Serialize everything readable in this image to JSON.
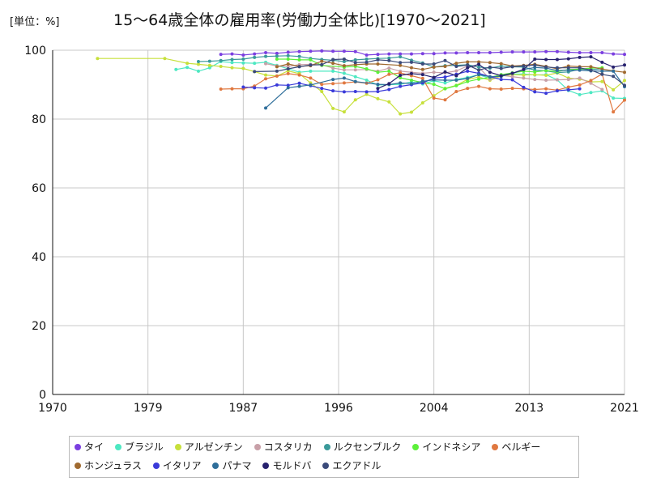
{
  "header": {
    "unit_label": "[単位：%]",
    "title": "15〜64歳全体の雇用率(労働力全体比)[1970〜2021]"
  },
  "chart_data": {
    "type": "line",
    "xlim": [
      1970,
      2021
    ],
    "ylim": [
      0,
      100
    ],
    "x_ticks": [
      "1970",
      "1979",
      "1987",
      "1996",
      "2004",
      "2013",
      "2021"
    ],
    "x_tick_values": [
      1970,
      1978.5,
      1987,
      1995.5,
      2004,
      2012.5,
      2021
    ],
    "y_ticks": [
      "0",
      "20",
      "40",
      "60",
      "80",
      "100"
    ],
    "y_tick_values": [
      0,
      20,
      40,
      60,
      80,
      100
    ],
    "grid": true,
    "legend_position": "bottom",
    "series": [
      {
        "name": "タイ",
        "color": "#7b3fe0",
        "x": [
          1985,
          1986,
          1987,
          1988,
          1989,
          1990,
          1991,
          1992,
          1993,
          1994,
          1995,
          1996,
          1997,
          1998,
          1999,
          2000,
          2001,
          2002,
          2003,
          2004,
          2005,
          2006,
          2007,
          2008,
          2009,
          2010,
          2011,
          2012,
          2013,
          2014,
          2015,
          2016,
          2017,
          2018,
          2019,
          2020,
          2021
        ],
        "y": [
          98.8,
          98.9,
          98.6,
          98.9,
          99.3,
          99.1,
          99.4,
          99.6,
          99.7,
          99.8,
          99.7,
          99.7,
          99.6,
          98.6,
          98.8,
          98.9,
          98.9,
          98.9,
          99.0,
          99.0,
          99.2,
          99.2,
          99.3,
          99.3,
          99.3,
          99.4,
          99.5,
          99.5,
          99.5,
          99.6,
          99.6,
          99.4,
          99.3,
          99.3,
          99.3,
          98.9,
          98.8
        ]
      },
      {
        "name": "ブラジル",
        "color": "#4de8c2",
        "x": [
          1981,
          1982,
          1983,
          1984,
          1985,
          1986,
          1987,
          1988,
          1989,
          1990,
          1992,
          1993,
          1995,
          1996,
          1997,
          1998,
          1999,
          2001,
          2002,
          2003,
          2004,
          2005,
          2006,
          2007,
          2008,
          2009,
          2011,
          2012,
          2013,
          2014,
          2015,
          2016,
          2017,
          2018,
          2019,
          2020,
          2021
        ],
        "y": [
          94.4,
          95.0,
          93.9,
          94.9,
          96.7,
          96.4,
          96.3,
          96.2,
          96.5,
          95.6,
          93.6,
          93.9,
          93.9,
          93.3,
          92.3,
          91.3,
          89.9,
          90.1,
          90.8,
          90.2,
          91.1,
          90.5,
          91.5,
          92.1,
          92.9,
          91.8,
          93.1,
          93.1,
          92.8,
          92.9,
          91.4,
          88.3,
          87.1,
          87.7,
          88.2,
          86.1,
          86.0
        ]
      },
      {
        "name": "アルゼンチン",
        "color": "#c7e03b",
        "x": [
          1974,
          1980,
          1982,
          1983,
          1984,
          1985,
          1986,
          1987,
          1988,
          1989,
          1990,
          1991,
          1992,
          1993,
          1994,
          1995,
          1996,
          1997,
          1998,
          1999,
          2000,
          2001,
          2002,
          2003,
          2004,
          2005,
          2006,
          2007,
          2008,
          2009,
          2010,
          2011,
          2012,
          2013,
          2014,
          2015,
          2016,
          2017,
          2018,
          2019,
          2020,
          2021
        ],
        "y": [
          97.6,
          97.6,
          96.2,
          95.9,
          95.6,
          95.3,
          94.9,
          94.7,
          93.8,
          92.8,
          92.5,
          94.0,
          93.2,
          90.5,
          88.0,
          83.1,
          82.1,
          85.6,
          87.2,
          85.9,
          85.0,
          81.5,
          82.0,
          84.7,
          86.8,
          88.9,
          89.8,
          91.5,
          92.2,
          91.3,
          92.5,
          92.9,
          92.8,
          92.9,
          92.7,
          93.4,
          91.9,
          91.6,
          90.8,
          90.9,
          88.5,
          91.2
        ]
      },
      {
        "name": "コスタリカ",
        "color": "#c8a0a8",
        "x": [
          1989,
          1990,
          1991,
          1992,
          1993,
          1994,
          1995,
          1996,
          1997,
          1998,
          1999,
          2000,
          2001,
          2002,
          2003,
          2004,
          2005,
          2006,
          2007,
          2008,
          2009,
          2010,
          2011,
          2012,
          2013,
          2014,
          2015,
          2016,
          2017,
          2018,
          2019
        ],
        "y": [
          96.1,
          95.4,
          95.3,
          95.8,
          95.9,
          95.8,
          94.8,
          94.3,
          94.3,
          94.4,
          93.9,
          94.8,
          93.9,
          93.6,
          93.3,
          93.6,
          93.4,
          94.0,
          95.4,
          95.1,
          91.6,
          92.7,
          92.3,
          91.9,
          91.5,
          91.3,
          91.4,
          91.5,
          91.9,
          90.4,
          88.6
        ]
      },
      {
        "name": "ルクセンブルク",
        "color": "#3a9a9a",
        "x": [
          1983,
          1984,
          1985,
          1986,
          1987,
          1988,
          1989,
          1990,
          1991,
          1992,
          1993,
          1994,
          1995,
          1996,
          1997,
          1998,
          1999,
          2000,
          2001,
          2002,
          2003,
          2004,
          2005,
          2006,
          2007,
          2008,
          2009,
          2010,
          2011,
          2012,
          2013,
          2014,
          2015,
          2016,
          2017,
          2018,
          2019
        ],
        "y": [
          96.7,
          96.8,
          97.0,
          97.3,
          97.4,
          97.9,
          98.2,
          98.3,
          98.4,
          98.2,
          97.6,
          97.3,
          97.1,
          96.7,
          97.2,
          97.4,
          97.6,
          97.7,
          98.1,
          97.1,
          96.3,
          95.1,
          95.5,
          95.6,
          95.8,
          95.1,
          94.8,
          95.4,
          95.2,
          95.1,
          94.2,
          94.0,
          93.5,
          93.7,
          94.5,
          94.4,
          94.6
        ]
      },
      {
        "name": "インドネシア",
        "color": "#5cf03a",
        "x": [
          1990,
          1991,
          1992,
          1993,
          1994,
          1996,
          1997,
          1998,
          1999,
          2000,
          2001,
          2002,
          2003,
          2004,
          2005,
          2006,
          2007,
          2008,
          2009,
          2010,
          2011,
          2012,
          2013,
          2014,
          2015,
          2016,
          2017,
          2018,
          2019
        ],
        "y": [
          97.4,
          97.4,
          97.2,
          97.2,
          95.6,
          95.1,
          95.3,
          94.6,
          93.6,
          93.9,
          92.0,
          91.3,
          90.6,
          90.1,
          88.8,
          89.7,
          90.9,
          91.6,
          92.1,
          92.9,
          93.4,
          93.9,
          93.7,
          94.1,
          93.8,
          94.4,
          94.5,
          94.8,
          94.9
        ]
      },
      {
        "name": "ベルギー",
        "color": "#e07840",
        "x": [
          1985,
          1986,
          1987,
          1988,
          1989,
          1990,
          1991,
          1992,
          1993,
          1994,
          1995,
          1996,
          1997,
          1998,
          1999,
          2000,
          2001,
          2002,
          2003,
          2004,
          2005,
          2006,
          2007,
          2008,
          2009,
          2010,
          2011,
          2012,
          2013,
          2014,
          2015,
          2016,
          2017,
          2018,
          2019,
          2020,
          2021
        ],
        "y": [
          88.7,
          88.8,
          88.8,
          89.6,
          91.7,
          92.5,
          93.2,
          92.8,
          91.9,
          90.1,
          90.3,
          90.5,
          90.8,
          90.4,
          91.4,
          93.0,
          93.4,
          92.6,
          91.8,
          86.1,
          85.6,
          88.0,
          88.9,
          89.5,
          88.8,
          88.7,
          88.9,
          88.8,
          88.6,
          88.8,
          88.4,
          89.3,
          89.9,
          91.2,
          93.1,
          82.1,
          85.5
        ]
      },
      {
        "name": "ホンジュラス",
        "color": "#a06a30",
        "x": [
          1990,
          1991,
          1992,
          1993,
          1994,
          1995,
          1996,
          1997,
          1998,
          1999,
          2001,
          2002,
          2003,
          2004,
          2005,
          2006,
          2007,
          2008,
          2009,
          2010,
          2011,
          2012,
          2013,
          2014,
          2015,
          2016,
          2017,
          2018,
          2019,
          2020,
          2021
        ],
        "y": [
          95.2,
          96.0,
          95.3,
          95.5,
          96.8,
          96.2,
          95.5,
          95.8,
          96.0,
          96.0,
          95.6,
          94.9,
          94.4,
          95.1,
          95.3,
          96.2,
          96.6,
          96.6,
          96.4,
          96.1,
          95.4,
          95.6,
          95.9,
          95.3,
          94.6,
          95.4,
          95.2,
          95.2,
          94.5,
          94.0,
          93.6
        ]
      },
      {
        "name": "イタリア",
        "color": "#3a3ad9",
        "x": [
          1987,
          1988,
          1989,
          1990,
          1991,
          1992,
          1993,
          1994,
          1995,
          1996,
          1997,
          1998,
          1999,
          2000,
          2001,
          2002,
          2003,
          2004,
          2005,
          2006,
          2007,
          2008,
          2009,
          2010,
          2011,
          2012,
          2013,
          2014,
          2015,
          2016,
          2017
        ],
        "y": [
          89.3,
          89.1,
          89.0,
          89.9,
          89.8,
          90.4,
          89.7,
          88.9,
          88.2,
          87.9,
          88.0,
          87.9,
          88.0,
          88.6,
          89.5,
          90.0,
          90.5,
          91.9,
          92.2,
          93.0,
          93.9,
          93.3,
          92.3,
          91.5,
          91.4,
          89.2,
          87.9,
          87.5,
          88.2,
          88.5,
          88.8
        ]
      },
      {
        "name": "パナマ",
        "color": "#2e6e9a",
        "x": [
          1989,
          1991,
          1992,
          1993,
          1995,
          1996,
          1997,
          1999,
          2000,
          2001,
          2002,
          2003,
          2004,
          2005,
          2006,
          2007,
          2008,
          2009,
          2010,
          2011,
          2012,
          2013,
          2014,
          2015,
          2016,
          2017,
          2018,
          2019,
          2020,
          2021
        ],
        "y": [
          83.2,
          89.1,
          89.5,
          89.9,
          91.5,
          91.9,
          90.9,
          90.1,
          90.0,
          90.5,
          90.3,
          91.0,
          91.4,
          91.3,
          91.3,
          91.8,
          92.9,
          92.3,
          92.4,
          93.3,
          94.4,
          95.0,
          94.8,
          94.1,
          94.2,
          94.2,
          94.0,
          93.9,
          93.9,
          89.4
        ]
      },
      {
        "name": "モルドバ",
        "color": "#27216e",
        "x": [
          1999,
          2000,
          2001,
          2002,
          2003,
          2004,
          2005,
          2006,
          2007,
          2008,
          2009,
          2010,
          2011,
          2012,
          2013,
          2014,
          2015,
          2016,
          2017,
          2018,
          2019,
          2020,
          2021
        ],
        "y": [
          88.9,
          90.3,
          92.7,
          93.2,
          92.9,
          92.1,
          93.7,
          92.6,
          94.9,
          95.9,
          93.6,
          92.6,
          93.3,
          94.4,
          97.4,
          97.3,
          97.3,
          97.5,
          97.9,
          98.1,
          96.5,
          95.1,
          95.7
        ]
      },
      {
        "name": "エクアドル",
        "color": "#3a4a7a",
        "x": [
          1988,
          1990,
          1991,
          1992,
          1993,
          1994,
          1995,
          1996,
          1997,
          1998,
          1999,
          2000,
          2001,
          2002,
          2003,
          2004,
          2005,
          2006,
          2007,
          2008,
          2009,
          2010,
          2011,
          2012,
          2013,
          2014,
          2015,
          2016,
          2017,
          2018,
          2019,
          2020,
          2021
        ],
        "y": [
          93.8,
          93.9,
          94.6,
          95.2,
          95.7,
          95.8,
          97.3,
          97.4,
          96.4,
          96.5,
          97.2,
          97.0,
          96.4,
          96.5,
          96.0,
          96.0,
          97.0,
          95.3,
          95.7,
          94.2,
          95.1,
          94.7,
          95.2,
          95.4,
          95.7,
          95.1,
          94.9,
          94.9,
          94.9,
          94.2,
          93.0,
          92.4,
          89.8
        ]
      }
    ]
  }
}
